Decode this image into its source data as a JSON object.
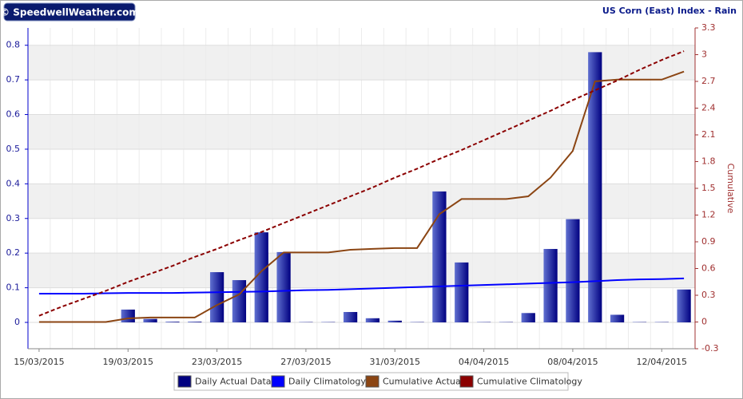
{
  "chart_data": {
    "type": "combo",
    "logo": "© SpeedwellWeather.com",
    "title": "US Corn (East) Index - Rain",
    "y2label": "Cumulative",
    "categories": [
      "15/03/2015",
      null,
      null,
      null,
      "19/03/2015",
      null,
      null,
      null,
      "23/03/2015",
      null,
      null,
      null,
      "27/03/2015",
      null,
      null,
      null,
      "31/03/2015",
      null,
      null,
      null,
      "04/04/2015",
      null,
      null,
      null,
      "08/04/2015",
      null,
      null,
      null,
      "12/04/2015",
      null
    ],
    "ylim": [
      -0.076,
      0.85
    ],
    "yticks": [
      0,
      0.1,
      0.2,
      0.3,
      0.4,
      0.5,
      0.6,
      0.7,
      0.8
    ],
    "y2lim": [
      -0.3,
      3.3
    ],
    "y2ticks": [
      -0.3,
      0,
      0.3,
      0.6,
      0.9,
      1.2,
      1.5,
      1.8,
      2.1,
      2.4,
      2.7,
      3,
      3.3
    ],
    "grid": true,
    "legend": "bottom",
    "series": [
      {
        "name": "Daily Actual Data",
        "type": "bar",
        "color": "#000080",
        "values": [
          0,
          0,
          0,
          0,
          0.037,
          0.01,
          0.002,
          0.002,
          0.145,
          0.122,
          0.26,
          0.203,
          0.001,
          0.001,
          0.03,
          0.012,
          0.005,
          0.001,
          0.378,
          0.173,
          0.001,
          0.001,
          0.027,
          0.212,
          0.298,
          0.78,
          0.022,
          0.001,
          0.001,
          0.095
        ]
      },
      {
        "name": "Daily Climatology",
        "type": "line",
        "color": "#0000ff",
        "values": [
          0.083,
          0.083,
          0.083,
          0.084,
          0.085,
          0.085,
          0.085,
          0.086,
          0.087,
          0.088,
          0.089,
          0.091,
          0.093,
          0.094,
          0.096,
          0.098,
          0.1,
          0.102,
          0.104,
          0.106,
          0.108,
          0.11,
          0.112,
          0.114,
          0.116,
          0.119,
          0.122,
          0.124,
          0.125,
          0.127
        ]
      },
      {
        "name": "Cumulative Actuals",
        "type": "line",
        "color": "#8b4513",
        "axis": "y2",
        "values": [
          0,
          0,
          0,
          0,
          0.04,
          0.05,
          0.05,
          0.05,
          0.19,
          0.31,
          0.57,
          0.78,
          0.78,
          0.78,
          0.81,
          0.82,
          0.83,
          0.83,
          1.21,
          1.38,
          1.38,
          1.38,
          1.41,
          1.62,
          1.92,
          2.7,
          2.72,
          2.72,
          2.72,
          2.81
        ]
      },
      {
        "name": "Cumulative Climatology",
        "type": "line",
        "color": "#8b0000",
        "axis": "y2",
        "dashed": true,
        "values": [
          0.07,
          0.17,
          0.26,
          0.35,
          0.45,
          0.54,
          0.63,
          0.73,
          0.82,
          0.92,
          1.01,
          1.11,
          1.21,
          1.31,
          1.41,
          1.51,
          1.62,
          1.72,
          1.83,
          1.93,
          2.04,
          2.15,
          2.26,
          2.37,
          2.49,
          2.6,
          2.71,
          2.83,
          2.94,
          3.04
        ]
      }
    ]
  }
}
